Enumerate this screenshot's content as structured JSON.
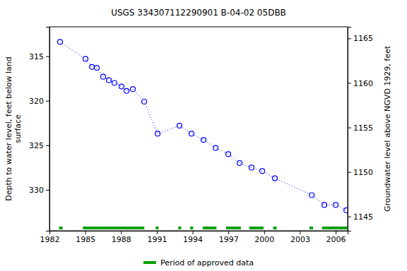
{
  "chart_data": {
    "type": "line",
    "title": "USGS 334307112290901 B-04-02 05DBB",
    "x": [
      1982.89,
      1985.02,
      1985.56,
      1985.97,
      1986.5,
      1986.98,
      1987.45,
      1988.04,
      1988.46,
      1988.99,
      1989.94,
      1991.07,
      1992.9,
      1993.91,
      1994.92,
      1995.93,
      1996.99,
      1997.94,
      1998.95,
      1999.84,
      2000.9,
      2003.99,
      2005.05,
      2006.0,
      2006.89
    ],
    "series": [
      {
        "color": "#0000ff",
        "marker": "circle",
        "line_style": "dotted",
        "values": [
          313.4,
          315.3,
          316.2,
          316.3,
          317.3,
          317.7,
          318.0,
          318.4,
          318.9,
          318.7,
          320.1,
          323.7,
          322.8,
          323.7,
          324.4,
          325.3,
          326.0,
          327.0,
          327.5,
          327.9,
          328.7,
          330.6,
          331.7,
          331.7,
          332.3
        ]
      }
    ],
    "xlim": [
      1982,
      2007
    ],
    "xticks": [
      1982,
      1985,
      1988,
      1991,
      1994,
      1997,
      2000,
      2003,
      2006
    ],
    "ylim": [
      334.6,
      311.7
    ],
    "yticks": [
      315,
      320,
      325,
      330
    ],
    "y2lim": [
      1143.4,
      1166.3
    ],
    "y2ticks": [
      1145,
      1150,
      1155,
      1160,
      1165
    ],
    "y_label": [
      "Depth to water level, feet below land",
      "surface"
    ],
    "y2_label": [
      "Groundwater level above NGVD 1929, feet"
    ],
    "approved_data": {
      "name": "Period of approved data",
      "color": "#00a000",
      "periods": [
        [
          1982.8,
          1983.1
        ],
        [
          1984.8,
          1989.95
        ],
        [
          1990.9,
          1991.15
        ],
        [
          1992.8,
          1993.05
        ],
        [
          1993.8,
          1994.05
        ],
        [
          1994.85,
          1996.0
        ],
        [
          1996.8,
          1998.05
        ],
        [
          1998.75,
          1999.95
        ],
        [
          2000.75,
          2001.05
        ],
        [
          2003.8,
          2004.1
        ],
        [
          2004.85,
          2007.0
        ]
      ]
    },
    "legend": "bottom"
  }
}
